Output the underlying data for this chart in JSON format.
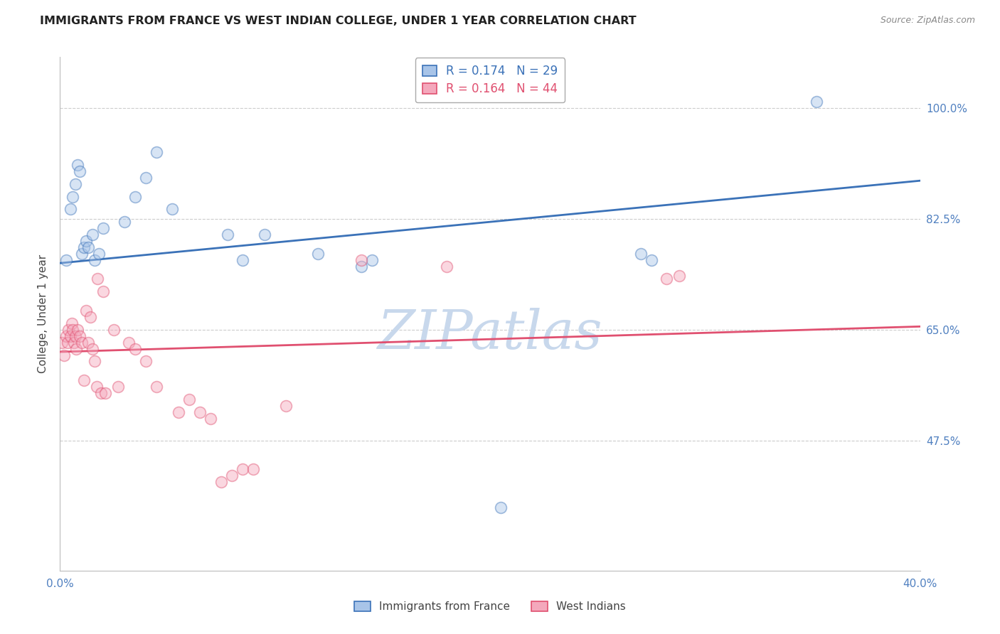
{
  "title": "IMMIGRANTS FROM FRANCE VS WEST INDIAN COLLEGE, UNDER 1 YEAR CORRELATION CHART",
  "source": "Source: ZipAtlas.com",
  "ylabel": "College, Under 1 year",
  "xlim": [
    0.0,
    40.0
  ],
  "ylim": [
    27.0,
    108.0
  ],
  "yticks": [
    47.5,
    65.0,
    82.5,
    100.0
  ],
  "ytick_labels": [
    "47.5%",
    "65.0%",
    "82.5%",
    "100.0%"
  ],
  "xticks": [
    0.0,
    10.0,
    20.0,
    30.0,
    40.0
  ],
  "xtick_labels": [
    "0.0%",
    "",
    "",
    "",
    "40.0%"
  ],
  "blue_label": "Immigrants from France",
  "pink_label": "West Indians",
  "blue_R": 0.174,
  "blue_N": 29,
  "pink_R": 0.164,
  "pink_N": 44,
  "blue_color": "#A8C4E8",
  "pink_color": "#F4A8BC",
  "trend_blue_color": "#3B72B8",
  "trend_pink_color": "#E05070",
  "watermark": "ZIPatlas",
  "watermark_color": "#C8D8EC",
  "background_color": "#FFFFFF",
  "grid_color": "#CCCCCC",
  "axis_label_color": "#5080C0",
  "blue_x": [
    0.3,
    0.5,
    0.6,
    0.7,
    0.8,
    0.9,
    1.0,
    1.1,
    1.2,
    1.3,
    1.5,
    1.6,
    1.8,
    2.0,
    3.0,
    3.5,
    4.0,
    4.5,
    5.2,
    7.8,
    8.5,
    9.5,
    12.0,
    14.0,
    14.5,
    20.5,
    27.0,
    27.5,
    35.2
  ],
  "blue_y": [
    76.0,
    84.0,
    86.0,
    88.0,
    91.0,
    90.0,
    77.0,
    78.0,
    79.0,
    78.0,
    80.0,
    76.0,
    77.0,
    81.0,
    82.0,
    86.0,
    89.0,
    93.0,
    84.0,
    80.0,
    76.0,
    80.0,
    77.0,
    75.0,
    76.0,
    37.0,
    77.0,
    76.0,
    101.0
  ],
  "pink_x": [
    0.1,
    0.2,
    0.3,
    0.35,
    0.4,
    0.5,
    0.55,
    0.6,
    0.65,
    0.7,
    0.75,
    0.8,
    0.9,
    1.0,
    1.1,
    1.2,
    1.3,
    1.4,
    1.5,
    1.6,
    1.7,
    1.75,
    1.9,
    2.0,
    2.1,
    2.5,
    2.7,
    3.2,
    3.5,
    4.0,
    4.5,
    5.5,
    6.0,
    6.5,
    7.0,
    7.5,
    8.0,
    8.5,
    9.0,
    10.5,
    14.0,
    18.0,
    28.2,
    28.8
  ],
  "pink_y": [
    63.0,
    61.0,
    64.0,
    63.0,
    65.0,
    64.0,
    66.0,
    65.0,
    63.0,
    64.0,
    62.0,
    65.0,
    64.0,
    63.0,
    57.0,
    68.0,
    63.0,
    67.0,
    62.0,
    60.0,
    56.0,
    73.0,
    55.0,
    71.0,
    55.0,
    65.0,
    56.0,
    63.0,
    62.0,
    60.0,
    56.0,
    52.0,
    54.0,
    52.0,
    51.0,
    41.0,
    42.0,
    43.0,
    43.0,
    53.0,
    76.0,
    75.0,
    73.0,
    73.5
  ],
  "blue_trend_x0": 0.0,
  "blue_trend_y0": 75.5,
  "blue_trend_x1": 40.0,
  "blue_trend_y1": 88.5,
  "pink_trend_x0": 0.0,
  "pink_trend_y0": 61.5,
  "pink_trend_x1": 40.0,
  "pink_trend_y1": 65.5,
  "marker_size": 130,
  "marker_alpha": 0.45,
  "marker_linewidth": 1.2,
  "title_fontsize": 11.5,
  "source_fontsize": 9,
  "tick_fontsize": 11,
  "ylabel_fontsize": 11
}
